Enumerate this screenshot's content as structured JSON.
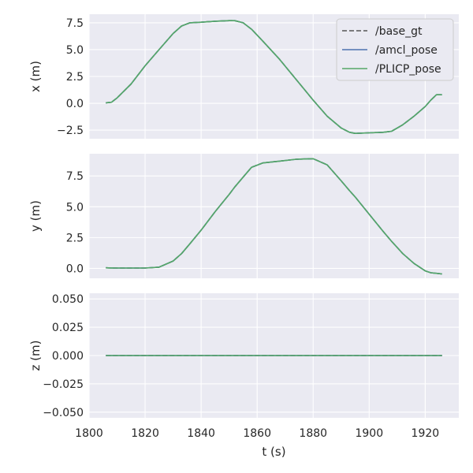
{
  "chart_data": {
    "type": "line",
    "xlabel": "t (s)",
    "xlim": [
      1800,
      1932
    ],
    "xticks": [
      1800,
      1820,
      1840,
      1860,
      1880,
      1900,
      1920
    ],
    "grid": true,
    "legend_position": "top-right",
    "legend": [
      "/base_gt",
      "/amcl_pose",
      "/PLICP_pose"
    ],
    "colors": {
      "base_gt": "#555555",
      "amcl_pose": "#4c72b0",
      "plicp_pose": "#55a868",
      "panel": "#eaeaf2"
    },
    "x": [
      1806,
      1808,
      1810,
      1815,
      1820,
      1825,
      1830,
      1833,
      1836,
      1840,
      1845,
      1850,
      1852,
      1855,
      1858,
      1862,
      1868,
      1874,
      1880,
      1885,
      1890,
      1893,
      1895,
      1900,
      1905,
      1908,
      1912,
      1916,
      1920,
      1922,
      1924,
      1926
    ],
    "panels": [
      {
        "ylabel": "x (m)",
        "ylim": [
          -3.3,
          8.3
        ],
        "yticks": [
          -2.5,
          0.0,
          2.5,
          5.0,
          7.5
        ],
        "ytick_labels": [
          "−2.5",
          "0.0",
          "2.5",
          "5.0",
          "7.5"
        ],
        "series": [
          {
            "name": "/base_gt",
            "values": [
              0.05,
              0.1,
              0.5,
              1.8,
              3.5,
              5.0,
              6.5,
              7.2,
              7.5,
              7.55,
              7.65,
              7.7,
              7.7,
              7.5,
              6.9,
              5.8,
              4.1,
              2.2,
              0.3,
              -1.2,
              -2.3,
              -2.7,
              -2.8,
              -2.75,
              -2.7,
              -2.6,
              -2.0,
              -1.2,
              -0.3,
              0.3,
              0.8,
              0.8
            ]
          },
          {
            "name": "/amcl_pose",
            "values": [
              0.05,
              0.1,
              0.5,
              1.8,
              3.5,
              5.0,
              6.5,
              7.2,
              7.5,
              7.55,
              7.65,
              7.7,
              7.7,
              7.5,
              6.9,
              5.8,
              4.1,
              2.2,
              0.3,
              -1.2,
              -2.3,
              -2.7,
              -2.8,
              -2.75,
              -2.7,
              -2.6,
              -2.0,
              -1.2,
              -0.3,
              0.3,
              0.8,
              0.8
            ]
          },
          {
            "name": "/PLICP_pose",
            "values": [
              0.05,
              0.1,
              0.5,
              1.8,
              3.5,
              5.0,
              6.5,
              7.2,
              7.5,
              7.55,
              7.65,
              7.7,
              7.7,
              7.5,
              6.9,
              5.8,
              4.1,
              2.2,
              0.3,
              -1.2,
              -2.3,
              -2.7,
              -2.8,
              -2.75,
              -2.7,
              -2.6,
              -2.0,
              -1.2,
              -0.3,
              0.3,
              0.8,
              0.8
            ]
          }
        ]
      },
      {
        "ylabel": "y (m)",
        "ylim": [
          -0.8,
          9.3
        ],
        "yticks": [
          0.0,
          2.5,
          5.0,
          7.5
        ],
        "ytick_labels": [
          "0.0",
          "2.5",
          "5.0",
          "7.5"
        ],
        "series": [
          {
            "name": "/base_gt",
            "values": [
              0.05,
              0.04,
              0.03,
              0.03,
              0.03,
              0.1,
              0.6,
              1.2,
              2.0,
              3.1,
              4.6,
              6.0,
              6.6,
              7.4,
              8.2,
              8.55,
              8.7,
              8.85,
              8.9,
              8.4,
              7.1,
              6.3,
              5.8,
              4.4,
              3.0,
              2.2,
              1.2,
              0.4,
              -0.2,
              -0.35,
              -0.4,
              -0.45
            ]
          },
          {
            "name": "/amcl_pose",
            "values": [
              0.05,
              0.04,
              0.03,
              0.03,
              0.03,
              0.1,
              0.6,
              1.2,
              2.0,
              3.1,
              4.6,
              6.0,
              6.6,
              7.4,
              8.2,
              8.55,
              8.7,
              8.85,
              8.9,
              8.4,
              7.1,
              6.3,
              5.8,
              4.4,
              3.0,
              2.2,
              1.2,
              0.4,
              -0.2,
              -0.35,
              -0.4,
              -0.45
            ]
          },
          {
            "name": "/PLICP_pose",
            "values": [
              0.05,
              0.04,
              0.03,
              0.03,
              0.03,
              0.1,
              0.6,
              1.2,
              2.0,
              3.1,
              4.6,
              6.0,
              6.6,
              7.4,
              8.2,
              8.55,
              8.7,
              8.85,
              8.9,
              8.4,
              7.1,
              6.3,
              5.8,
              4.4,
              3.0,
              2.2,
              1.2,
              0.4,
              -0.2,
              -0.35,
              -0.4,
              -0.45
            ]
          }
        ]
      },
      {
        "ylabel": "z (m)",
        "ylim": [
          -0.055,
          0.055
        ],
        "yticks": [
          -0.05,
          -0.025,
          0.0,
          0.025,
          0.05
        ],
        "ytick_labels": [
          "−0.050",
          "−0.025",
          "0.000",
          "0.025",
          "0.050"
        ],
        "series": [
          {
            "name": "/base_gt",
            "values": [
              0,
              0,
              0,
              0,
              0,
              0,
              0,
              0,
              0,
              0,
              0,
              0,
              0,
              0,
              0,
              0,
              0,
              0,
              0,
              0,
              0,
              0,
              0,
              0,
              0,
              0,
              0,
              0,
              0,
              0,
              0,
              0
            ]
          },
          {
            "name": "/amcl_pose",
            "values": [
              0,
              0,
              0,
              0,
              0,
              0,
              0,
              0,
              0,
              0,
              0,
              0,
              0,
              0,
              0,
              0,
              0,
              0,
              0,
              0,
              0,
              0,
              0,
              0,
              0,
              0,
              0,
              0,
              0,
              0,
              0,
              0
            ]
          },
          {
            "name": "/PLICP_pose",
            "values": [
              0,
              0,
              0,
              0,
              0,
              0,
              0,
              0,
              0,
              0,
              0,
              0,
              0,
              0,
              0,
              0,
              0,
              0,
              0,
              0,
              0,
              0,
              0,
              0,
              0,
              0,
              0,
              0,
              0,
              0,
              0,
              0
            ]
          }
        ]
      }
    ]
  }
}
